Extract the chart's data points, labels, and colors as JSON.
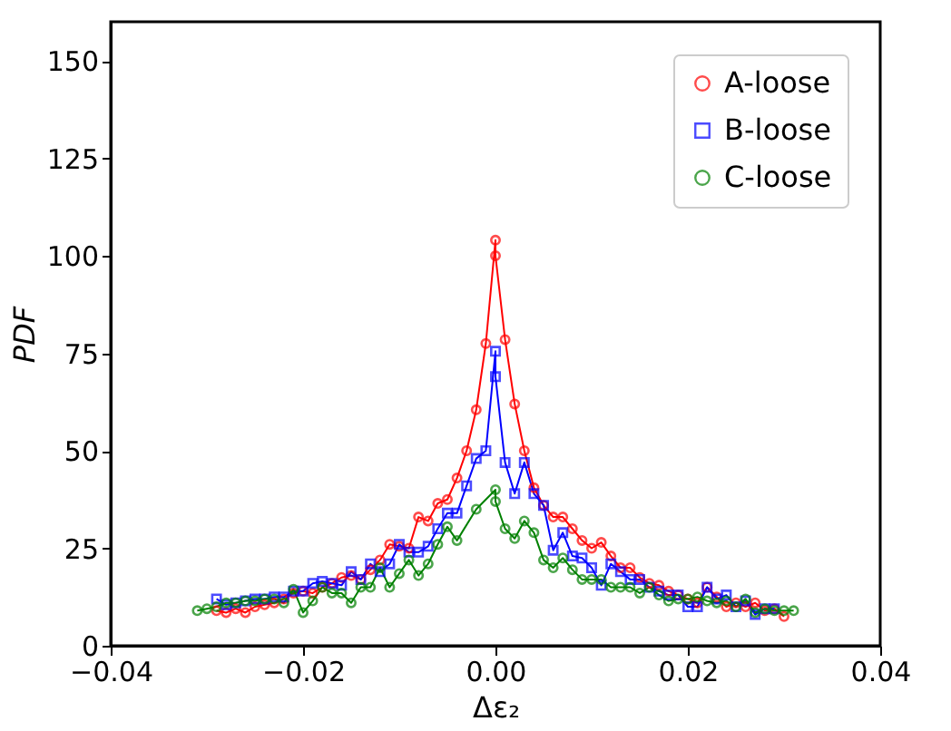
{
  "chart_data": {
    "type": "line",
    "xlabel": "Δε₂",
    "ylabel": "PDF",
    "xlim": [
      -0.04,
      0.04
    ],
    "xticks": [
      {
        "value": -0.04,
        "label": "−0.04"
      },
      {
        "value": -0.02,
        "label": "−0.02"
      },
      {
        "value": 0,
        "label": "0.00"
      },
      {
        "value": 0.02,
        "label": "0.02"
      },
      {
        "value": 0.04,
        "label": "0.04"
      }
    ],
    "ylim": [
      0,
      160
    ],
    "yticks": [
      0,
      25,
      50,
      75,
      100,
      125,
      150
    ],
    "grid": false,
    "legend": "top right",
    "line_style": "solid",
    "series": [
      {
        "name": "A-loose",
        "color": "#ff0000",
        "marker": "circle",
        "x": [
          -0.029,
          -0.028,
          -0.027,
          -0.026,
          -0.025,
          -0.024,
          -0.023,
          -0.022,
          -0.021,
          -0.02,
          -0.019,
          -0.018,
          -0.017,
          -0.016,
          -0.015,
          -0.014,
          -0.013,
          -0.012,
          -0.011,
          -0.01,
          -0.009,
          -0.008,
          -0.007,
          -0.006,
          -0.005,
          -0.004,
          -0.003,
          -0.002,
          -0.001,
          0,
          0,
          0.001,
          0.002,
          0.003,
          0.004,
          0.005,
          0.006,
          0.007,
          0.008,
          0.009,
          0.01,
          0.011,
          0.012,
          0.013,
          0.014,
          0.015,
          0.016,
          0.017,
          0.018,
          0.019,
          0.02,
          0.021,
          0.022,
          0.023,
          0.024,
          0.025,
          0.026,
          0.027,
          0.028,
          0.029,
          0.03
        ],
        "values": [
          9,
          8.5,
          9.5,
          8.5,
          10,
          10.5,
          11,
          12,
          13.5,
          14,
          13.5,
          15,
          16,
          17.5,
          18,
          17,
          19.5,
          22,
          26,
          25.5,
          25,
          33,
          32,
          36.5,
          37.5,
          43,
          50,
          60.5,
          77.5,
          104,
          100,
          78.5,
          62,
          50,
          40.5,
          36,
          33,
          33,
          30,
          27,
          25,
          26.5,
          23,
          20,
          20,
          17.5,
          16,
          15.5,
          14,
          13,
          12,
          11,
          15,
          12.5,
          10,
          11,
          10,
          11,
          9,
          9.5,
          7.5
        ]
      },
      {
        "name": "B-loose",
        "color": "#0000ff",
        "marker": "square",
        "x": [
          -0.029,
          -0.028,
          -0.027,
          -0.026,
          -0.025,
          -0.024,
          -0.023,
          -0.022,
          -0.021,
          -0.02,
          -0.019,
          -0.018,
          -0.017,
          -0.016,
          -0.015,
          -0.014,
          -0.013,
          -0.012,
          -0.011,
          -0.01,
          -0.009,
          -0.008,
          -0.007,
          -0.006,
          -0.005,
          -0.004,
          -0.003,
          -0.002,
          -0.001,
          0,
          0,
          0.001,
          0.002,
          0.003,
          0.004,
          0.005,
          0.006,
          0.007,
          0.008,
          0.009,
          0.01,
          0.011,
          0.012,
          0.013,
          0.014,
          0.015,
          0.016,
          0.017,
          0.018,
          0.019,
          0.02,
          0.021,
          0.022,
          0.023,
          0.024,
          0.025,
          0.026,
          0.027,
          0.028,
          0.029
        ],
        "values": [
          12,
          10.5,
          11,
          11.5,
          12,
          12,
          12.5,
          12.5,
          14,
          14,
          16,
          16.5,
          16,
          15.5,
          19,
          17,
          21,
          19,
          21,
          26,
          24,
          24,
          25.5,
          30,
          34,
          34,
          41,
          48,
          50,
          75.5,
          69,
          47,
          39,
          47,
          39,
          36,
          24.5,
          29,
          23,
          22.5,
          20,
          15.5,
          21,
          19,
          17,
          17,
          15,
          14,
          13,
          13,
          10,
          10,
          15,
          12,
          13,
          10,
          11.5,
          8,
          9.5,
          9.5
        ]
      },
      {
        "name": "C-loose",
        "color": "#008000",
        "marker": "circle",
        "x": [
          -0.031,
          -0.03,
          -0.029,
          -0.028,
          -0.027,
          -0.026,
          -0.025,
          -0.024,
          -0.023,
          -0.022,
          -0.021,
          -0.02,
          -0.019,
          -0.018,
          -0.017,
          -0.016,
          -0.015,
          -0.014,
          -0.013,
          -0.012,
          -0.011,
          -0.01,
          -0.009,
          -0.008,
          -0.007,
          -0.006,
          -0.005,
          -0.004,
          -0.002,
          0,
          0,
          0.001,
          0.002,
          0.003,
          0.004,
          0.005,
          0.006,
          0.007,
          0.008,
          0.009,
          0.01,
          0.011,
          0.012,
          0.013,
          0.014,
          0.015,
          0.016,
          0.017,
          0.018,
          0.019,
          0.02,
          0.021,
          0.022,
          0.023,
          0.024,
          0.025,
          0.026,
          0.027,
          0.028,
          0.029,
          0.03,
          0.031
        ],
        "values": [
          9,
          9.5,
          10,
          11,
          11,
          11.5,
          11.5,
          12,
          12,
          11,
          14.5,
          8.5,
          11.5,
          15,
          13.5,
          13.5,
          11,
          15,
          15,
          20,
          15,
          18.5,
          22,
          18,
          21,
          26,
          30.5,
          27,
          35,
          40,
          37,
          30,
          27.5,
          32,
          29,
          22,
          20,
          22.5,
          19.5,
          17,
          17,
          17,
          15,
          15,
          15,
          13.5,
          15,
          13,
          11.5,
          12,
          12,
          12.5,
          11.5,
          11,
          11.5,
          10,
          12,
          8.5,
          9.5,
          9,
          9,
          9
        ]
      }
    ]
  }
}
